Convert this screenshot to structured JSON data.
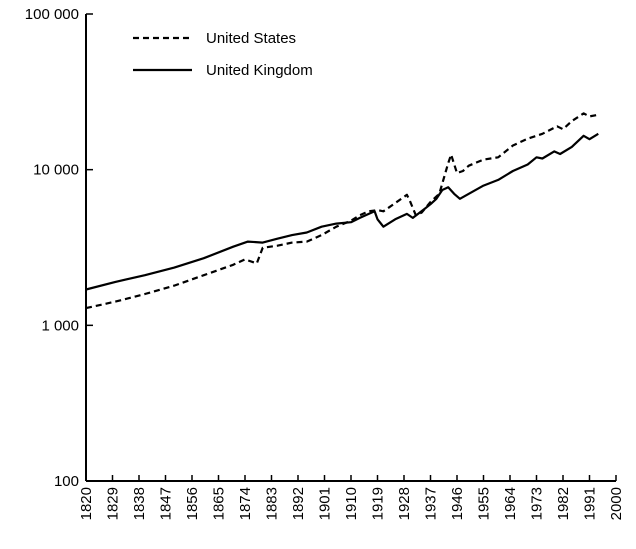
{
  "chart_data": {
    "type": "line",
    "title": "",
    "xlabel": "",
    "ylabel": "",
    "yscale": "log",
    "xlim": [
      1820,
      2000
    ],
    "ylim": [
      100,
      100000
    ],
    "grid": false,
    "legend_position": "top-left",
    "x_tick_labels": [
      "1820",
      "1829",
      "1838",
      "1847",
      "1856",
      "1865",
      "1874",
      "1883",
      "1892",
      "1901",
      "1910",
      "1919",
      "1928",
      "1937",
      "1946",
      "1955",
      "1964",
      "1973",
      "1982",
      "1991",
      "2000"
    ],
    "y_ticks": [
      {
        "value": 100,
        "label": "100"
      },
      {
        "value": 1000,
        "label": "1 000"
      },
      {
        "value": 10000,
        "label": "10 000"
      },
      {
        "value": 100000,
        "label": "100 000"
      }
    ],
    "series": [
      {
        "name": "United States",
        "style": "dashed",
        "color": "#000000",
        "points": [
          [
            1820,
            1290
          ],
          [
            1830,
            1420
          ],
          [
            1840,
            1590
          ],
          [
            1850,
            1800
          ],
          [
            1860,
            2100
          ],
          [
            1870,
            2450
          ],
          [
            1874,
            2650
          ],
          [
            1878,
            2500
          ],
          [
            1880,
            3150
          ],
          [
            1885,
            3250
          ],
          [
            1890,
            3400
          ],
          [
            1895,
            3450
          ],
          [
            1900,
            3800
          ],
          [
            1905,
            4300
          ],
          [
            1910,
            4700
          ],
          [
            1913,
            5100
          ],
          [
            1916,
            5400
          ],
          [
            1919,
            5500
          ],
          [
            1921,
            5400
          ],
          [
            1925,
            6100
          ],
          [
            1929,
            6900
          ],
          [
            1930,
            6300
          ],
          [
            1932,
            5100
          ],
          [
            1934,
            5300
          ],
          [
            1937,
            6200
          ],
          [
            1940,
            7000
          ],
          [
            1943,
            11000
          ],
          [
            1944,
            12500
          ],
          [
            1946,
            9500
          ],
          [
            1948,
            9800
          ],
          [
            1950,
            10600
          ],
          [
            1955,
            11600
          ],
          [
            1960,
            12000
          ],
          [
            1965,
            14300
          ],
          [
            1970,
            15800
          ],
          [
            1975,
            17000
          ],
          [
            1980,
            19000
          ],
          [
            1982,
            18200
          ],
          [
            1985,
            20500
          ],
          [
            1989,
            23000
          ],
          [
            1991,
            22000
          ],
          [
            1994,
            22500
          ]
        ]
      },
      {
        "name": "United Kingdom",
        "style": "solid",
        "color": "#000000",
        "points": [
          [
            1820,
            1700
          ],
          [
            1830,
            1900
          ],
          [
            1840,
            2100
          ],
          [
            1850,
            2350
          ],
          [
            1860,
            2700
          ],
          [
            1870,
            3200
          ],
          [
            1875,
            3450
          ],
          [
            1880,
            3400
          ],
          [
            1885,
            3600
          ],
          [
            1890,
            3800
          ],
          [
            1895,
            3950
          ],
          [
            1900,
            4300
          ],
          [
            1905,
            4500
          ],
          [
            1910,
            4600
          ],
          [
            1913,
            4900
          ],
          [
            1918,
            5400
          ],
          [
            1919,
            4800
          ],
          [
            1921,
            4300
          ],
          [
            1925,
            4800
          ],
          [
            1929,
            5200
          ],
          [
            1931,
            4900
          ],
          [
            1935,
            5600
          ],
          [
            1937,
            6000
          ],
          [
            1939,
            6500
          ],
          [
            1941,
            7400
          ],
          [
            1943,
            7700
          ],
          [
            1945,
            7000
          ],
          [
            1947,
            6500
          ],
          [
            1950,
            7000
          ],
          [
            1955,
            7900
          ],
          [
            1960,
            8600
          ],
          [
            1965,
            9800
          ],
          [
            1970,
            10800
          ],
          [
            1973,
            12000
          ],
          [
            1975,
            11800
          ],
          [
            1979,
            13100
          ],
          [
            1981,
            12600
          ],
          [
            1985,
            14000
          ],
          [
            1989,
            16500
          ],
          [
            1991,
            15700
          ],
          [
            1994,
            17000
          ]
        ]
      }
    ]
  }
}
